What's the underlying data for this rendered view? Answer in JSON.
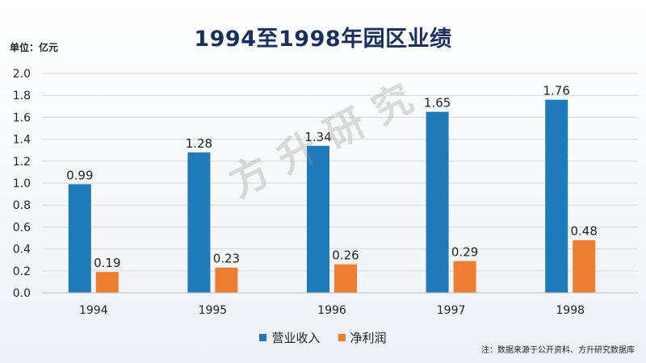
{
  "title": "1994至1998年园区业绩",
  "unit_label": "单位：亿元",
  "source_note": "注：数据来源于公开资料、方升研究数据库",
  "watermark": "方升研究",
  "colors": {
    "revenue": "#1e7ab8",
    "profit": "#ed7d31",
    "title": "#1b2f5e",
    "grid": "#d9d9d9"
  },
  "chart_data": {
    "type": "bar",
    "title": "1994至1998年园区业绩",
    "xlabel": "",
    "ylabel": "单位：亿元",
    "ylim": [
      0,
      2.0
    ],
    "yticks": [
      "0.0",
      "0.2",
      "0.4",
      "0.6",
      "0.8",
      "1.0",
      "1.2",
      "1.4",
      "1.6",
      "1.8",
      "2.0"
    ],
    "categories": [
      "1994",
      "1995",
      "1996",
      "1997",
      "1998"
    ],
    "series": [
      {
        "name": "营业收入",
        "values": [
          0.99,
          1.28,
          1.34,
          1.65,
          1.76
        ],
        "labels": [
          "0.99",
          "1.28",
          "1.34",
          "1.65",
          "1.76"
        ]
      },
      {
        "name": "净利润",
        "values": [
          0.19,
          0.23,
          0.26,
          0.29,
          0.48
        ],
        "labels": [
          "0.19",
          "0.23",
          "0.26",
          "0.29",
          "0.48"
        ]
      }
    ],
    "grid": true,
    "legend": "bottom"
  }
}
